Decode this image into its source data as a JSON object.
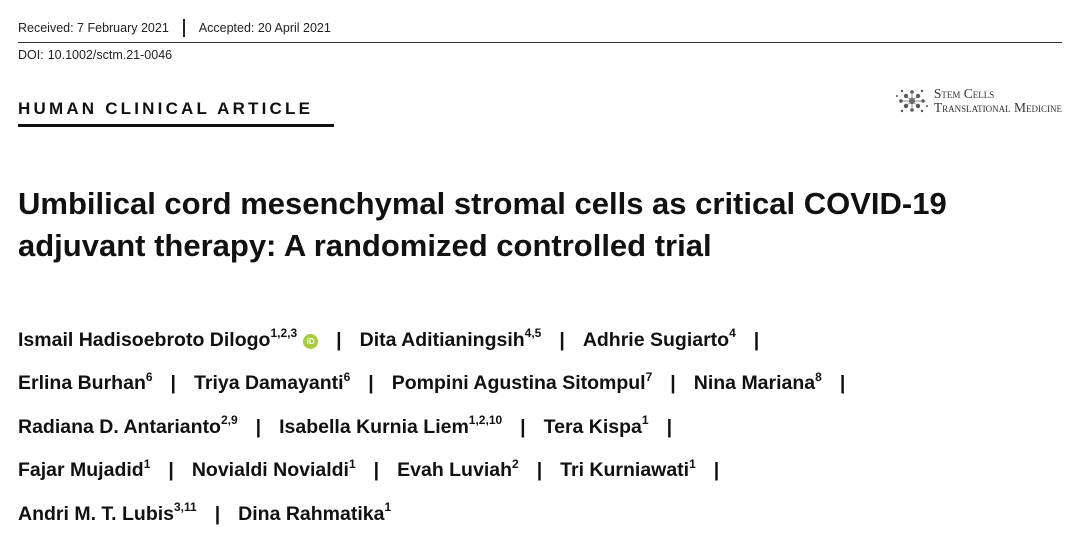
{
  "header": {
    "received": "Received: 7 February 2021",
    "accepted": "Accepted: 20 April 2021",
    "doi_label": "DOI:",
    "doi": "10.1002/sctm.21-0046"
  },
  "section_label": "HUMAN CLINICAL ARTICLE",
  "journal": {
    "line1": "Stem Cells",
    "line2": "Translational Medicine"
  },
  "title": "Umbilical cord mesenchymal stromal cells as critical COVID-19 adjuvant therapy: A randomized controlled trial",
  "orcid_label": "iD",
  "authors": [
    {
      "name": "Ismail Hadisoebroto Dilogo",
      "aff": "1,2,3"
    },
    {
      "name": "Dita Aditianingsih",
      "aff": "4,5"
    },
    {
      "name": "Adhrie Sugiarto",
      "aff": "4"
    },
    {
      "name": "Erlina Burhan",
      "aff": "6"
    },
    {
      "name": "Triya Damayanti",
      "aff": "6"
    },
    {
      "name": "Pompini Agustina Sitompul",
      "aff": "7"
    },
    {
      "name": "Nina Mariana",
      "aff": "8"
    },
    {
      "name": "Radiana D. Antarianto",
      "aff": "2,9"
    },
    {
      "name": "Isabella Kurnia Liem",
      "aff": "1,2,10"
    },
    {
      "name": "Tera Kispa",
      "aff": "1"
    },
    {
      "name": "Fajar Mujadid",
      "aff": "1"
    },
    {
      "name": "Novialdi Novialdi",
      "aff": "1"
    },
    {
      "name": "Evah Luviah",
      "aff": "2"
    },
    {
      "name": "Tri Kurniawati",
      "aff": "1"
    },
    {
      "name": "Andri M. T. Lubis",
      "aff": "3,11"
    },
    {
      "name": "Dina Rahmatika",
      "aff": "1"
    }
  ],
  "colors": {
    "orcid": "#a6ce39",
    "text": "#111111"
  }
}
